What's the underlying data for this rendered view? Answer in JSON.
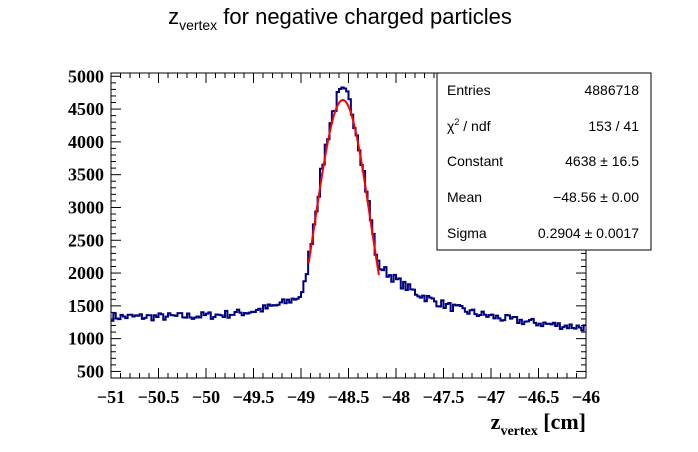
{
  "chart_data": {
    "type": "histogram",
    "title": {
      "main": "z",
      "sub": "vertex",
      "rest": " for negative charged particles"
    },
    "xlabel": {
      "main": "z",
      "sub": "vertex",
      "rest": " [cm]"
    },
    "ylabel": "",
    "xlim": [
      -51,
      -46
    ],
    "ylim": [
      400,
      5050
    ],
    "x_ticks": [
      -51,
      -50.5,
      -50,
      -49.5,
      -49,
      -48.5,
      -48,
      -47.5,
      -47,
      -46.5,
      -46
    ],
    "x_tick_labels": [
      "−51",
      "−50.5",
      "−50",
      "−49.5",
      "−49",
      "−48.5",
      "−48",
      "−47.5",
      "−47",
      "−46.5",
      "−46"
    ],
    "y_ticks": [
      500,
      1000,
      1500,
      2000,
      2500,
      3000,
      3500,
      4000,
      4500,
      5000
    ],
    "y_tick_labels": [
      "500",
      "1000",
      "1500",
      "2000",
      "2500",
      "3000",
      "3500",
      "4000",
      "4500",
      "5000"
    ],
    "histogram": {
      "x_range": [
        -51,
        -46
      ],
      "bins": 200,
      "color": "#000080",
      "model": {
        "baseline_start": 1300,
        "baseline_slope_per_cm": 40,
        "peak_mean": -48.56,
        "lorentz_amp": 720,
        "lorentz_gamma": 0.55,
        "tail_amp": 680,
        "tail_decay_cm": 0.9
      }
    },
    "fit": {
      "function": "gaus",
      "color": "#ff0000",
      "constant": 4638,
      "mean": -48.56,
      "sigma": 0.2904,
      "range": [
        -48.92,
        -48.18
      ]
    },
    "stats": [
      {
        "label": "Entries",
        "value": "4886718"
      },
      {
        "label_main": "χ",
        "label_sup": "2",
        "label_rest": " / ndf",
        "value": "153 / 41"
      },
      {
        "label": "Constant",
        "value": "4638 ± 16.5"
      },
      {
        "label": "Mean",
        "value": "−48.56 ± 0.00"
      },
      {
        "label": "Sigma",
        "value": "0.2904 ± 0.0017"
      }
    ],
    "grid": false,
    "legend": "top-right stats box"
  }
}
